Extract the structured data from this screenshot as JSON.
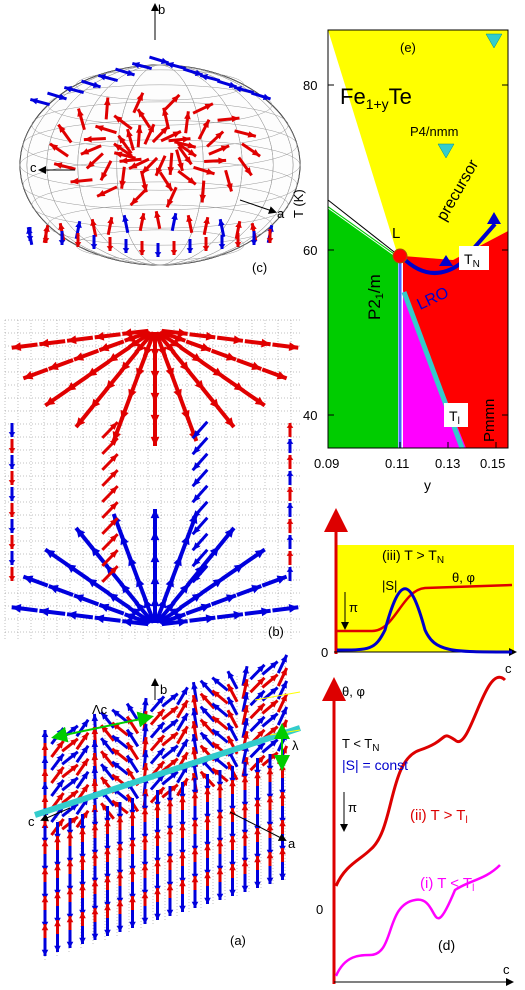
{
  "panel_c": {
    "label": "(c)",
    "axis_b": "b",
    "axis_a": "a",
    "axis_c": "c"
  },
  "panel_b": {
    "label": "(b)"
  },
  "panel_a": {
    "label": "(a)",
    "axis_b": "b",
    "axis_a": "a",
    "axis_c": "c",
    "Lambda_c": "Λc",
    "lambda": "λ"
  },
  "phase_diagram": {
    "label": "(e)",
    "title": "Fe1+yTe",
    "ylabel": "T (K)",
    "xlabel": "y",
    "xticks": [
      "0.09",
      "0.11",
      "0.13",
      "0.15"
    ],
    "yticks": [
      "40",
      "60",
      "80"
    ],
    "regions": {
      "p4nmm": "P4/nmm",
      "precursor": "precursor",
      "p21m": "P21/m",
      "lro": "LRO",
      "pmmn": "Pmmn",
      "TN": "TN",
      "Tl": "Tl",
      "L": "L"
    },
    "colors": {
      "yellow": "#ffff00",
      "green": "#00cc00",
      "red": "#ff0000",
      "magenta": "#ff00ff",
      "cyan": "#33cccc",
      "blue": "#0000cc"
    }
  },
  "profile_iii": {
    "label": "(iii) T > TN",
    "S": "|S|",
    "theta_phi": "θ, φ",
    "pi": "π",
    "zero": "0",
    "axis_c": "c"
  },
  "profile_d": {
    "label": "(d)",
    "theta_phi": "θ, φ",
    "T_lt_TN": "T < TN",
    "S_const": "|S| = const",
    "ii": "(ii) T > Tl",
    "i": "(i) T < Tl",
    "pi": "π",
    "zero": "0",
    "axis_c": "c"
  }
}
